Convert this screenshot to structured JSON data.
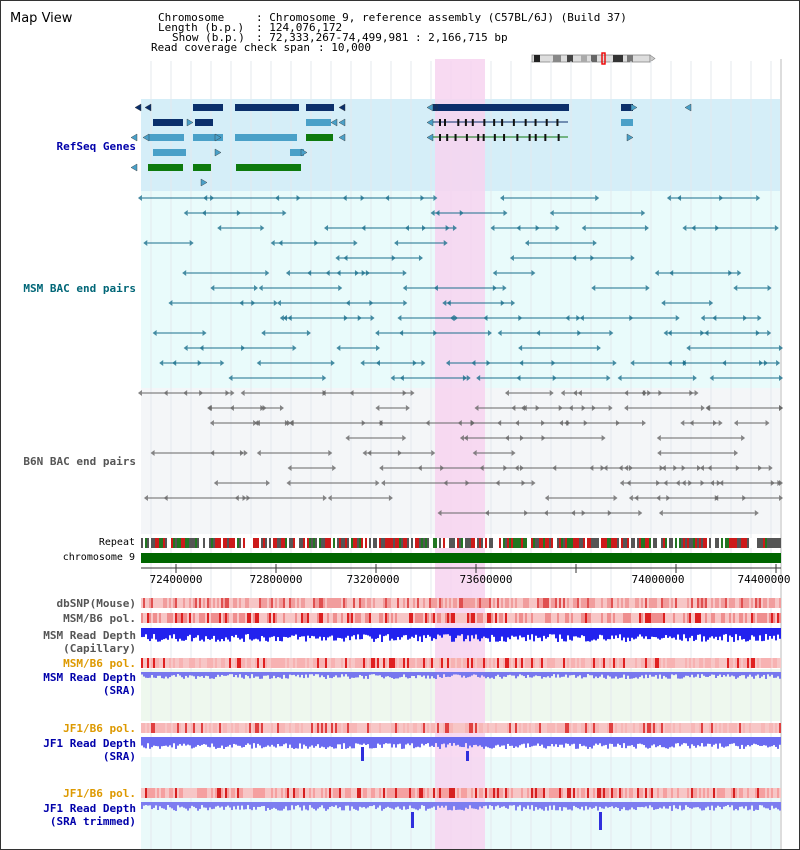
{
  "window": {
    "title": "Map View"
  },
  "header": {
    "chromosome_key": "Chromosome",
    "chromosome_val": ": Chromosome 9, reference assembly (C57BL/6J) (Build 37)",
    "length_key": "Length (b.p.)",
    "length_val": ": 124,076,172",
    "show_key": "Show (b.p.)",
    "show_val": ": 72,333,267-74,499,981 : 2,166,715 bp",
    "coverage_key": "Read coverage check span",
    "coverage_val": ": 10,000"
  },
  "tracks": {
    "refseq": "RefSeq Genes",
    "msm_bac": "MSM BAC end pairs",
    "b6n_bac": "B6N BAC end pairs",
    "repeat": "Repeat",
    "chromosome": "chromosome 9",
    "dbsnp": "dbSNP(Mouse)",
    "msm_b6_pol_1": "MSM/B6 pol.",
    "msm_read_depth_cap_1": "MSM Read Depth",
    "msm_read_depth_cap_2": "(Capillary)",
    "msm_b6_pol_2": "MSM/B6 pol.",
    "msm_read_depth_sra_1": "MSM Read Depth",
    "msm_read_depth_sra_2": "(SRA)",
    "jf1_b6_pol_1": "JF1/B6 pol.",
    "jf1_read_depth_sra_1": "JF1 Read Depth",
    "jf1_read_depth_sra_2": "(SRA)",
    "jf1_b6_pol_2": "JF1/B6 pol.",
    "jf1_read_depth_trim_1": "JF1 Read Depth",
    "jf1_read_depth_trim_2": "(SRA trimmed)"
  },
  "axis": {
    "ticks": [
      "72400000",
      "72800000",
      "73200000",
      "73600000",
      "74000000",
      "74400000"
    ]
  },
  "colors": {
    "refseq_bg": "#d5eef8",
    "bac_bg": "#e9fbfb",
    "highlight": "#f7d3f0",
    "chromosome_bar": "#006600",
    "msm_label": "#0000aa",
    "msm_bac_label": "#006677",
    "b6n_label": "#555555",
    "orange_label": "#dd9900",
    "dark_blue_label": "#0000aa"
  }
}
